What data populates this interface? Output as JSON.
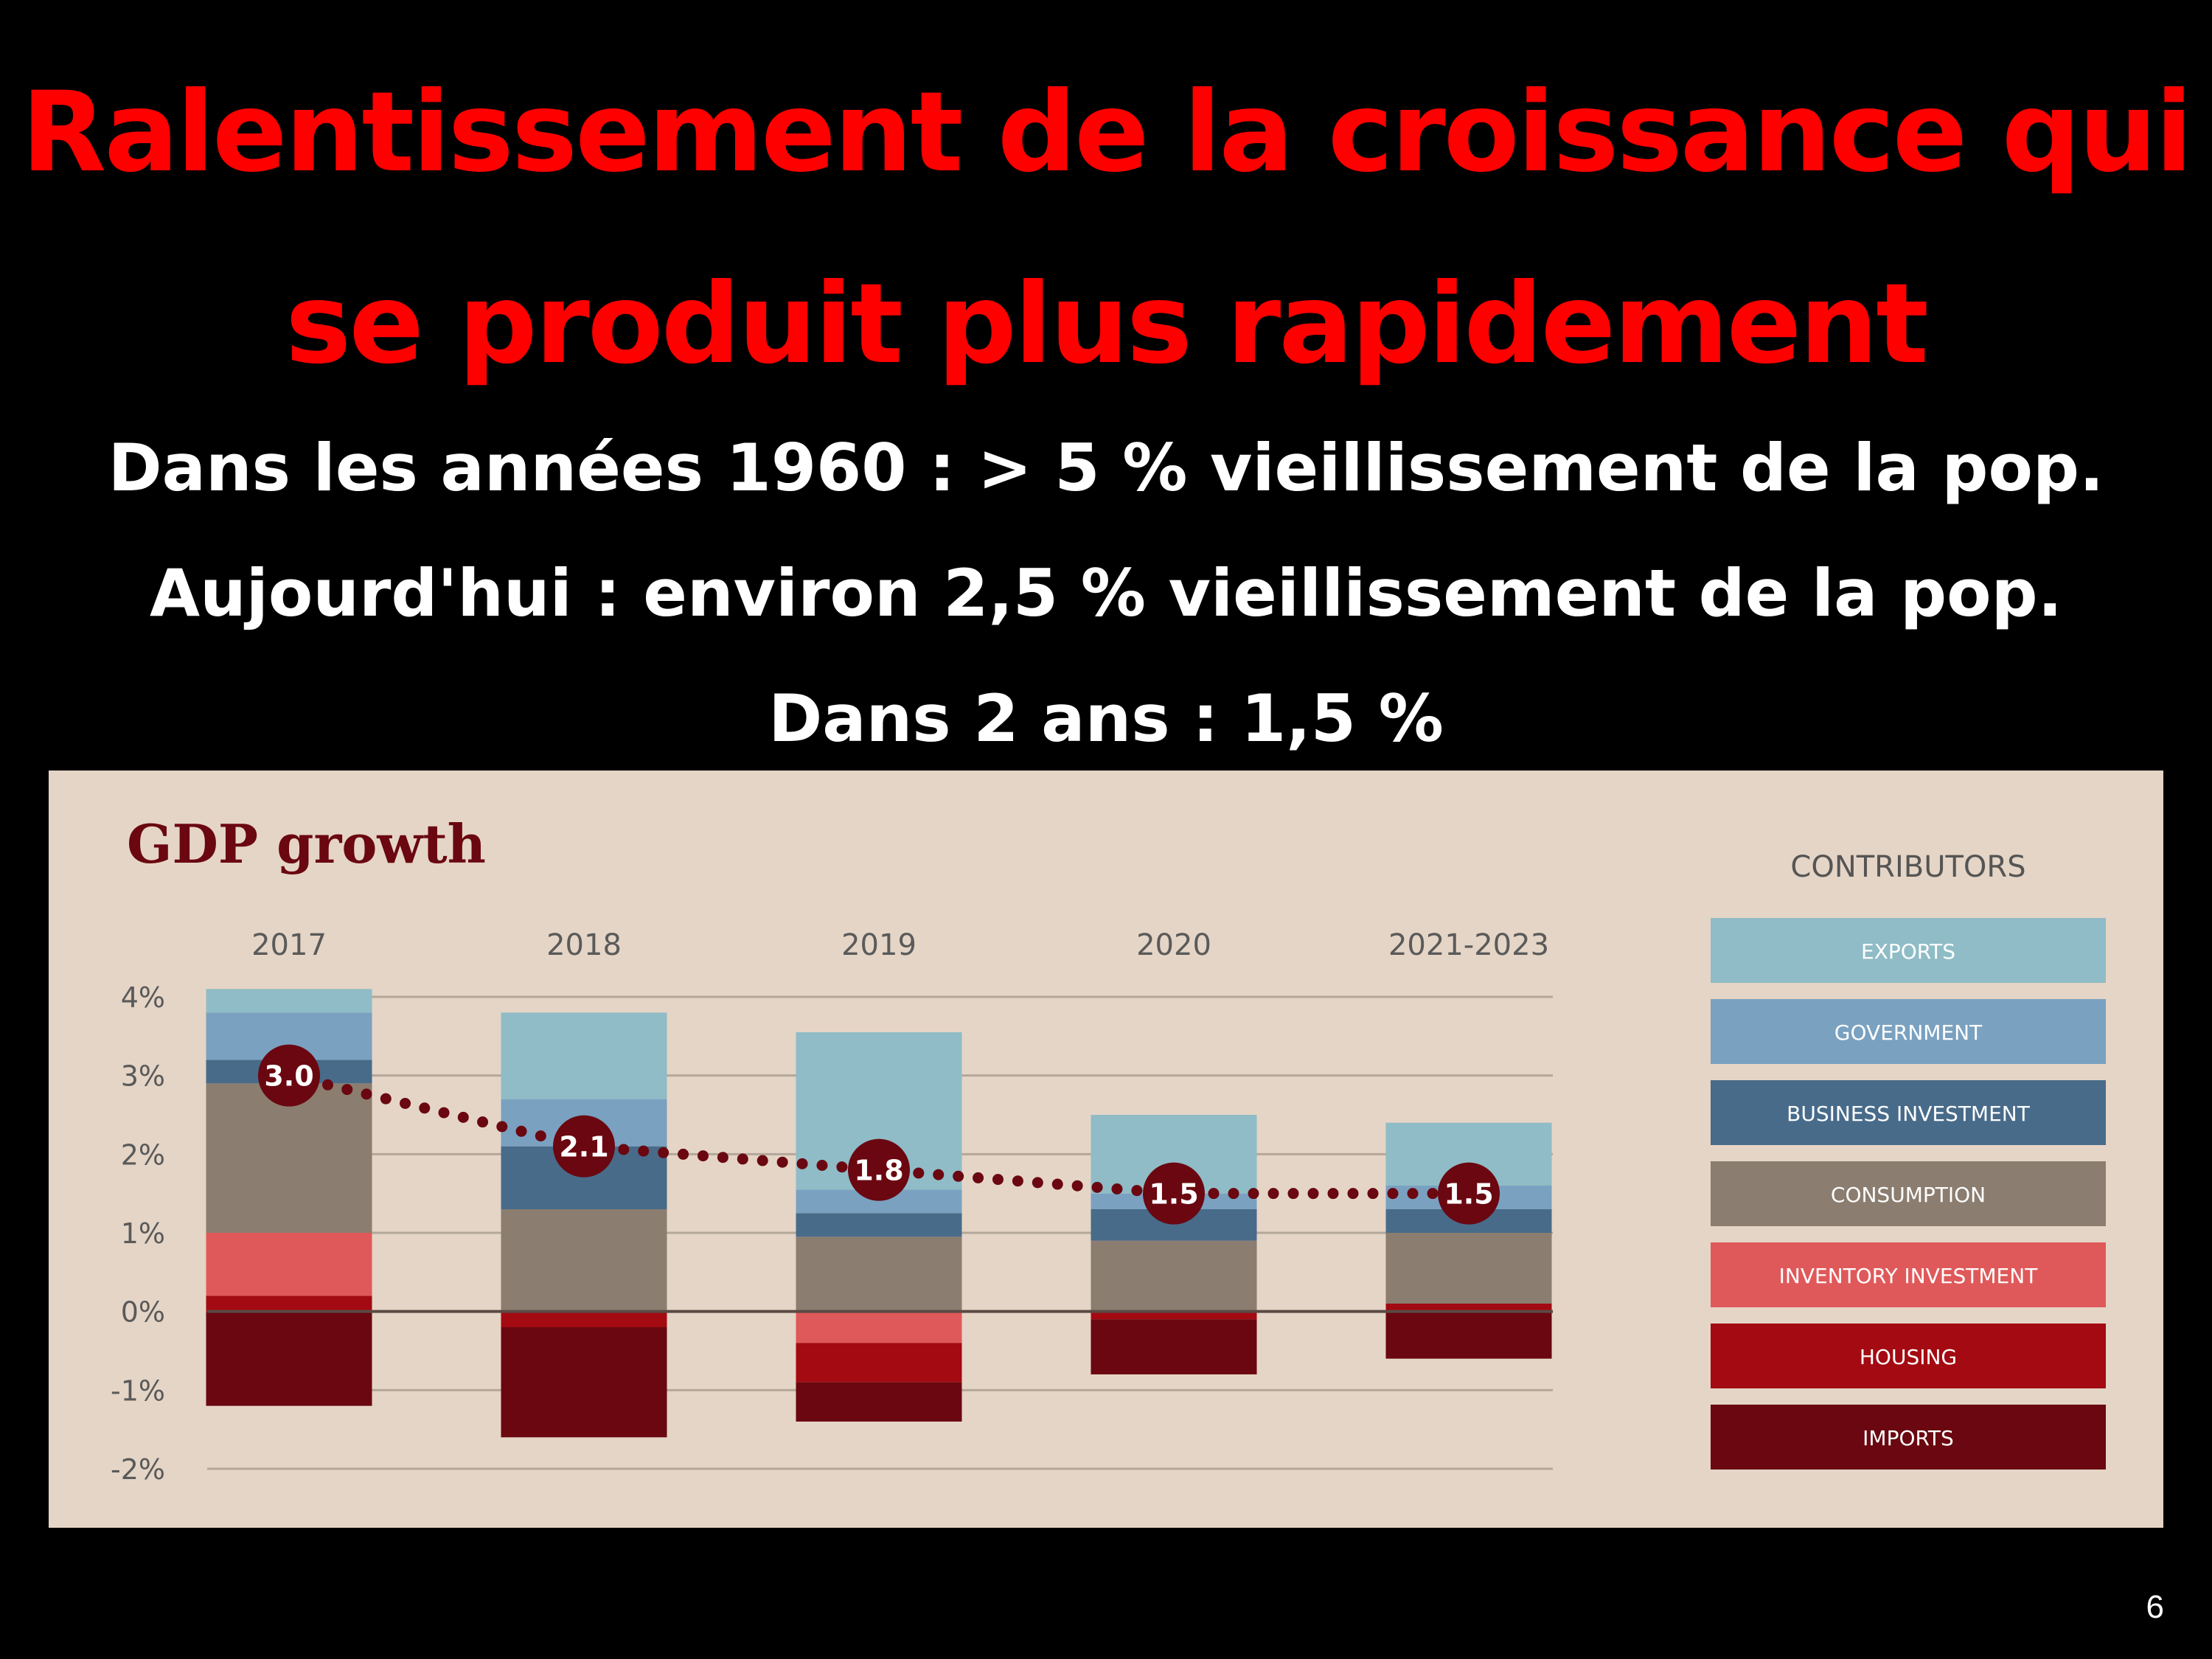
{
  "slide": {
    "title_line1": "Ralentissement de la croissance qui",
    "title_line2": "se produit plus rapidement",
    "subtitle_line1": "Dans les années 1960 : > 5 % vieillissement de la pop.",
    "subtitle_line2": "Aujourd'hui : environ 2,5 % vieillissement de la pop.",
    "subtitle_line3": "Dans 2 ans : 1,5 %",
    "slide_number": "6"
  },
  "chart_data": {
    "type": "bar",
    "stacked": true,
    "title": "GDP growth",
    "legend_title": "CONTRIBUTORS",
    "legend_position": "right",
    "categories": [
      "2017",
      "2018",
      "2019",
      "2020",
      "2021-2023"
    ],
    "ylim": [
      -2,
      4
    ],
    "yticks": [
      "4%",
      "3%",
      "2%",
      "1%",
      "0%",
      "-1%",
      "-2%"
    ],
    "ytick_values": [
      4,
      3,
      2,
      1,
      0,
      -1,
      -2
    ],
    "grid": true,
    "colors": {
      "panel": "#e5d5c6",
      "exports": "#8fbcc6",
      "government": "#7aa1c0",
      "business_investment": "#486b8a",
      "consumption": "#8b7d6f",
      "inventory_investment": "#e0595a",
      "housing": "#a30a12",
      "imports": "#6a0710",
      "growth_marker": "#6a0710"
    },
    "series": [
      {
        "name": "EXPORTS",
        "color_key": "exports",
        "values": [
          0.3,
          1.1,
          2.0,
          1.0,
          0.8
        ]
      },
      {
        "name": "GOVERNMENT",
        "color_key": "government",
        "values": [
          0.6,
          0.6,
          0.3,
          0.2,
          0.3
        ]
      },
      {
        "name": "BUSINESS INVESTMENT",
        "color_key": "business_investment",
        "values": [
          0.3,
          0.8,
          0.3,
          0.4,
          0.3
        ]
      },
      {
        "name": "CONSUMPTION",
        "color_key": "consumption",
        "values": [
          1.9,
          1.3,
          0.95,
          0.9,
          0.9
        ]
      },
      {
        "name": "INVENTORY INVESTMENT",
        "color_key": "inventory_investment",
        "values": [
          0.8,
          0.0,
          -0.4,
          0.0,
          0.0
        ]
      },
      {
        "name": "HOUSING",
        "color_key": "housing",
        "values": [
          0.2,
          -0.2,
          -0.5,
          -0.1,
          0.1
        ]
      },
      {
        "name": "IMPORTS",
        "color_key": "imports",
        "values": [
          -1.2,
          -1.4,
          -0.5,
          -0.7,
          -0.6
        ]
      }
    ],
    "growth": {
      "values": [
        3.0,
        2.1,
        1.8,
        1.5,
        1.5
      ],
      "labels": [
        "3.0",
        "2.1",
        "1.8",
        "1.5",
        "1.5"
      ]
    }
  }
}
